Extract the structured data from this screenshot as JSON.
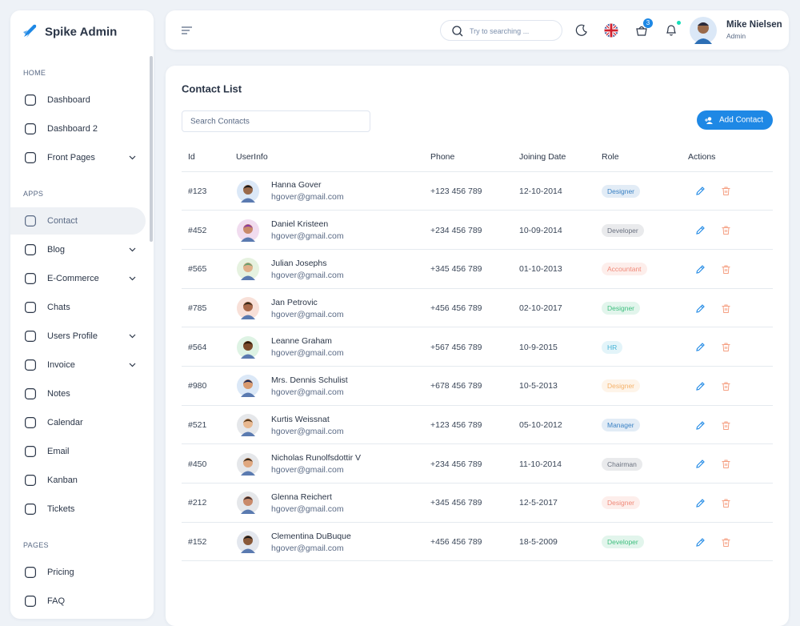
{
  "sidebar": {
    "brand": "Spike Admin",
    "sections": [
      {
        "title": "HOME",
        "items": [
          {
            "label": "Dashboard"
          },
          {
            "label": "Dashboard 2"
          },
          {
            "label": "Front Pages",
            "expandable": true
          }
        ]
      },
      {
        "title": "APPS",
        "items": [
          {
            "label": "Contact",
            "active": true
          },
          {
            "label": "Blog",
            "expandable": true
          },
          {
            "label": "E-Commerce",
            "expandable": true
          },
          {
            "label": "Chats"
          },
          {
            "label": "Users Profile",
            "expandable": true
          },
          {
            "label": "Invoice",
            "expandable": true
          },
          {
            "label": "Notes"
          },
          {
            "label": "Calendar"
          },
          {
            "label": "Email"
          },
          {
            "label": "Kanban"
          },
          {
            "label": "Tickets"
          }
        ]
      },
      {
        "title": "PAGES",
        "items": [
          {
            "label": "Pricing"
          },
          {
            "label": "FAQ"
          }
        ]
      }
    ]
  },
  "header": {
    "search_placeholder": "Try to searching ...",
    "cart_count": 3,
    "user": {
      "name": "Mike Nielsen",
      "role": "Admin"
    }
  },
  "contacts": {
    "title": "Contact List",
    "search_placeholder": "Search Contacts",
    "add_button": "Add Contact",
    "columns": [
      "Id",
      "UserInfo",
      "Phone",
      "Joining Date",
      "Role",
      "Actions"
    ],
    "rows": [
      {
        "id": "#123",
        "name": "Hanna Gover",
        "email": "hgover@gmail.com",
        "phone": "+123 456 789",
        "date": "12-10-2014",
        "role": "Designer",
        "role_color": "#3b82c4"
      },
      {
        "id": "#452",
        "name": "Daniel Kristeen",
        "email": "hgover@gmail.com",
        "phone": "+234 456 789",
        "date": "10-09-2014",
        "role": "Developer",
        "role_color": "#6b7280"
      },
      {
        "id": "#565",
        "name": "Julian Josephs",
        "email": "hgover@gmail.com",
        "phone": "+345 456 789",
        "date": "01-10-2013",
        "role": "Accountant",
        "role_color": "#f08a7a"
      },
      {
        "id": "#785",
        "name": "Jan Petrovic",
        "email": "hgover@gmail.com",
        "phone": "+456 456 789",
        "date": "02-10-2017",
        "role": "Designer",
        "role_color": "#3fbf7f"
      },
      {
        "id": "#564",
        "name": "Leanne Graham",
        "email": "hgover@gmail.com",
        "phone": "+567 456 789",
        "date": "10-9-2015",
        "role": "HR",
        "role_color": "#46b3d6"
      },
      {
        "id": "#980",
        "name": "Mrs. Dennis Schulist",
        "email": "hgover@gmail.com",
        "phone": "+678 456 789",
        "date": "10-5-2013",
        "role": "Designer",
        "role_color": "#f5b26b"
      },
      {
        "id": "#521",
        "name": "Kurtis Weissnat",
        "email": "hgover@gmail.com",
        "phone": "+123 456 789",
        "date": "05-10-2012",
        "role": "Manager",
        "role_color": "#3b82c4"
      },
      {
        "id": "#450",
        "name": "Nicholas Runolfsdottir V",
        "email": "hgover@gmail.com",
        "phone": "+234 456 789",
        "date": "11-10-2014",
        "role": "Chairman",
        "role_color": "#6b7280"
      },
      {
        "id": "#212",
        "name": "Glenna Reichert",
        "email": "hgover@gmail.com",
        "phone": "+345 456 789",
        "date": "12-5-2017",
        "role": "Designer",
        "role_color": "#f08a7a"
      },
      {
        "id": "#152",
        "name": "Clementina DuBuque",
        "email": "hgover@gmail.com",
        "phone": "+456 456 789",
        "date": "18-5-2009",
        "role": "Developer",
        "role_color": "#3fbf7f"
      }
    ]
  }
}
